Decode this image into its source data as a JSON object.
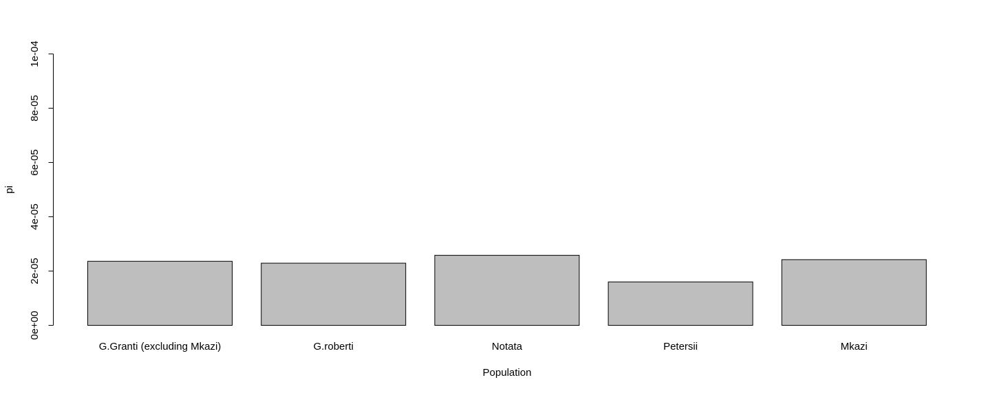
{
  "chart_data": {
    "type": "bar",
    "title": "",
    "xlabel": "Population",
    "ylabel": "pi",
    "categories": [
      "G.Granti (excluding Mkazi)",
      "G.roberti",
      "Notata",
      "Petersii",
      "Mkazi"
    ],
    "values": [
      2.36e-05,
      2.29e-05,
      2.58e-05,
      1.6e-05,
      2.42e-05
    ],
    "ylim": [
      0,
      0.0001
    ],
    "yticks": [
      0,
      2e-05,
      4e-05,
      6e-05,
      8e-05,
      0.0001
    ],
    "ytick_labels": [
      "0e+00",
      "2e-05",
      "4e-05",
      "6e-05",
      "8e-05",
      "1e-04"
    ],
    "bar_color": "#bebebe",
    "border_color": "#000000",
    "grid": false,
    "legend": "none"
  }
}
